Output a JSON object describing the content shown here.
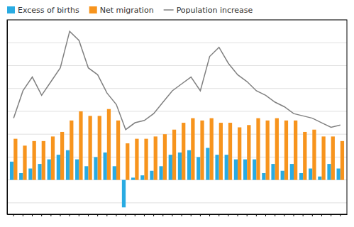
{
  "chart_data": {
    "type": "bar",
    "categories": [
      null,
      null,
      null,
      null,
      null,
      null,
      null,
      null,
      null,
      null,
      null,
      null,
      null,
      null,
      null,
      null,
      null,
      null,
      null,
      null,
      null,
      null,
      null,
      null,
      null,
      null,
      null,
      null,
      null,
      null,
      null,
      null,
      null,
      null,
      null,
      null
    ],
    "series": [
      {
        "name": "Excess of births",
        "type": "bar",
        "color": "#29ABE2",
        "values": [
          800,
          300,
          500,
          700,
          900,
          1100,
          1300,
          900,
          600,
          1000,
          1200,
          600,
          -1200,
          100,
          200,
          400,
          600,
          1100,
          1200,
          1300,
          1000,
          1400,
          1100,
          1100,
          900,
          900,
          900,
          300,
          700,
          400,
          700,
          300,
          500,
          150,
          700,
          500
        ]
      },
      {
        "name": "Net migration",
        "type": "bar",
        "color": "#F7941D",
        "values": [
          1800,
          1500,
          1700,
          1700,
          1900,
          2100,
          2600,
          3000,
          2800,
          2800,
          3100,
          2600,
          1600,
          1800,
          1800,
          1900,
          2000,
          2200,
          2500,
          2700,
          2600,
          2700,
          2500,
          2500,
          2300,
          2400,
          2700,
          2600,
          2700,
          2600,
          2600,
          2100,
          2200,
          1900,
          1900,
          1700
        ]
      },
      {
        "name": "Population increase",
        "type": "line",
        "color": "#808080",
        "values": [
          2700,
          3900,
          4500,
          3700,
          4300,
          4900,
          6500,
          6100,
          4900,
          4600,
          3800,
          3300,
          2200,
          2500,
          2600,
          2900,
          3400,
          3900,
          4200,
          4500,
          3900,
          5400,
          5800,
          5100,
          4600,
          4300,
          3900,
          3700,
          3400,
          3200,
          2900,
          2800,
          2700,
          2500,
          2300,
          2400
        ]
      }
    ],
    "ylim": [
      -1500,
      7000
    ],
    "yticks": [
      -1000,
      0,
      1000,
      2000,
      3000,
      4000,
      5000,
      6000,
      7000
    ],
    "grid": true,
    "legend": "top-left",
    "tick_labels": false
  }
}
